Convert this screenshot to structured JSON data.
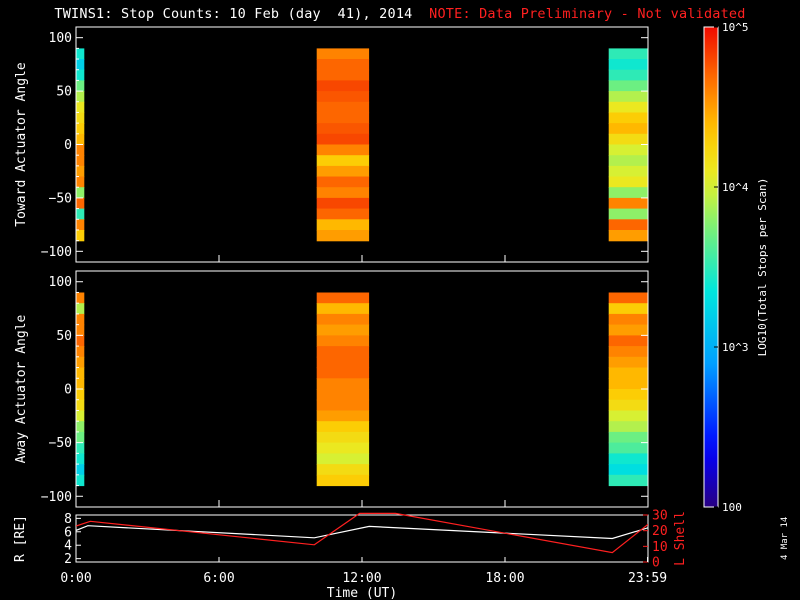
{
  "title": {
    "main": "TWINS1: Stop Counts: 10 Feb (day  41), 2014",
    "note": "NOTE: Data Preliminary - Not validated"
  },
  "stamp": "4 Mar 14",
  "colorbar": {
    "label": "LOG10(Total Stops per Scan)",
    "ticks": [
      {
        "value": 100,
        "label": "100"
      },
      {
        "value": 1000,
        "label": "10^3"
      },
      {
        "value": 10000,
        "label": "10^4"
      },
      {
        "value": 100000,
        "label": "10^5"
      }
    ],
    "log_range": [
      2,
      5
    ]
  },
  "chart_data": [
    {
      "type": "heatmap",
      "name": "toward",
      "ylabel": "Toward Actuator Angle",
      "ylim": [
        -110,
        110
      ],
      "yticks": [
        -100,
        -50,
        0,
        50,
        100
      ],
      "xlim_hours": [
        0,
        24
      ],
      "y_range_data": [
        -90,
        90
      ],
      "blocks": [
        {
          "start_hour": 0.0,
          "end_hour": 0.35,
          "profile": [
            3.4,
            3.2,
            3.4,
            3.7,
            3.9,
            4.1,
            4.2,
            4.3,
            4.4,
            4.6,
            4.6,
            4.5,
            4.6,
            3.8,
            4.7,
            3.5,
            4.6,
            4.3
          ]
        },
        {
          "start_hour": 10.1,
          "end_hour": 12.3,
          "profile": [
            4.6,
            4.7,
            4.7,
            4.8,
            4.75,
            4.7,
            4.7,
            4.75,
            4.8,
            4.6,
            4.3,
            4.5,
            4.7,
            4.6,
            4.8,
            4.7,
            4.4,
            4.5
          ]
        },
        {
          "start_hour": 22.35,
          "end_hour": 24.0,
          "profile": [
            3.5,
            3.4,
            3.5,
            3.7,
            3.9,
            4.1,
            4.3,
            4.4,
            4.2,
            4.0,
            3.9,
            4.0,
            4.1,
            3.8,
            4.6,
            3.8,
            4.7,
            4.5
          ]
        }
      ]
    },
    {
      "type": "heatmap",
      "name": "away",
      "ylabel": "Away Actuator Angle",
      "ylim": [
        -110,
        110
      ],
      "yticks": [
        -100,
        -50,
        0,
        50,
        100
      ],
      "xlim_hours": [
        0,
        24
      ],
      "y_range_data": [
        -90,
        90
      ],
      "blocks": [
        {
          "start_hour": 0.0,
          "end_hour": 0.35,
          "profile": [
            4.6,
            3.9,
            4.6,
            4.6,
            4.7,
            4.6,
            4.5,
            4.4,
            4.4,
            4.3,
            4.2,
            4.0,
            3.8,
            3.7,
            3.5,
            3.4,
            3.2,
            3.4
          ]
        },
        {
          "start_hour": 10.1,
          "end_hour": 12.3,
          "profile": [
            4.7,
            4.4,
            4.6,
            4.5,
            4.6,
            4.7,
            4.7,
            4.7,
            4.6,
            4.6,
            4.6,
            4.5,
            4.3,
            4.2,
            4.1,
            4.0,
            4.2,
            4.3
          ]
        },
        {
          "start_hour": 22.35,
          "end_hour": 24.0,
          "profile": [
            4.7,
            4.3,
            4.6,
            4.5,
            4.7,
            4.6,
            4.5,
            4.4,
            4.4,
            4.3,
            4.2,
            4.0,
            3.9,
            3.7,
            3.6,
            3.4,
            3.3,
            3.5
          ]
        }
      ]
    },
    {
      "type": "line",
      "name": "orbit",
      "ylabel_left": "R [RE]",
      "ylabel_right": "L Shell",
      "xlabel": "Time (UT)",
      "xticks": [
        {
          "hour": 0,
          "label": "0:00"
        },
        {
          "hour": 6,
          "label": "6:00"
        },
        {
          "hour": 12,
          "label": "12:00"
        },
        {
          "hour": 18,
          "label": "18:00"
        },
        {
          "hour": 23.98,
          "label": "23:59"
        }
      ],
      "xlim_hours": [
        0,
        24
      ],
      "ylim_left": [
        1.5,
        8.5
      ],
      "yticks_left": [
        2,
        4,
        6,
        8
      ],
      "ylim_right": [
        0,
        30
      ],
      "yticks_right": [
        0,
        10,
        20,
        30
      ],
      "series": [
        {
          "name": "R [RE]",
          "axis": "left",
          "color": "#ffffff",
          "x": [
            0,
            0.5,
            10.0,
            12.3,
            22.5,
            24.0
          ],
          "y": [
            6.2,
            6.9,
            5.1,
            6.8,
            5.0,
            6.6
          ]
        },
        {
          "name": "L Shell",
          "axis": "right",
          "color": "#ff2020",
          "x": [
            0,
            0.6,
            10.0,
            11.9,
            12.1,
            13.4,
            22.5,
            24.0
          ],
          "y": [
            23,
            26,
            11,
            31,
            31,
            31,
            6,
            24
          ]
        }
      ]
    }
  ],
  "colors": {
    "background": "#000000",
    "axes": "#ffffff",
    "note": "#ff2020"
  }
}
